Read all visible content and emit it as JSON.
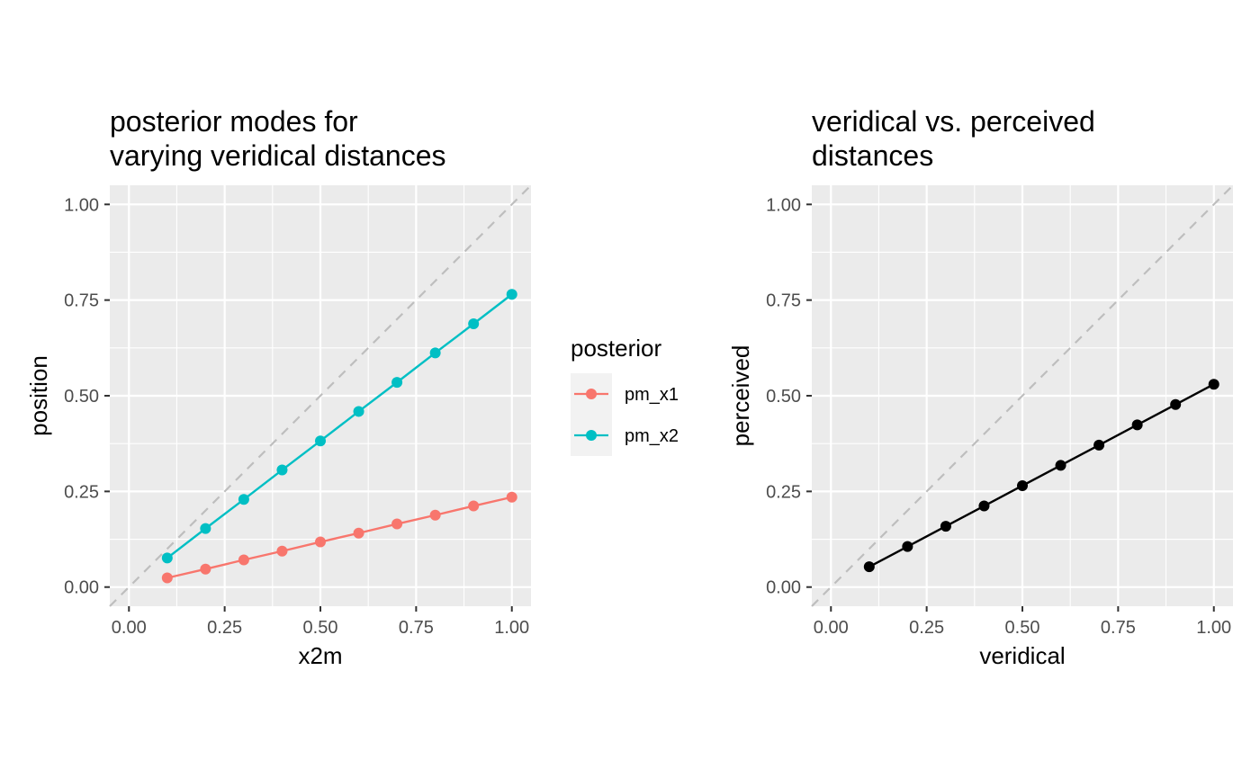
{
  "chart_data": [
    {
      "type": "line",
      "title": "posterior modes for\nvarying veridical distances",
      "xlabel": "x2m",
      "ylabel": "position",
      "xlim": [
        -0.05,
        1.05
      ],
      "ylim": [
        -0.05,
        1.05
      ],
      "xticks": [
        0.0,
        0.25,
        0.5,
        0.75,
        1.0
      ],
      "yticks": [
        0.0,
        0.25,
        0.5,
        0.75,
        1.0
      ],
      "xtick_labels": [
        "0.00",
        "0.25",
        "0.50",
        "0.75",
        "1.00"
      ],
      "ytick_labels": [
        "0.00",
        "0.25",
        "0.50",
        "0.75",
        "1.00"
      ],
      "grid": true,
      "reference_line": {
        "style": "dashed",
        "color": "#bebebe",
        "slope": 1,
        "intercept": 0
      },
      "x": [
        0.1,
        0.2,
        0.3,
        0.4,
        0.5,
        0.6,
        0.7,
        0.8,
        0.9,
        1.0
      ],
      "series": [
        {
          "name": "pm_x1",
          "color": "#F8766D",
          "values": [
            0.024,
            0.047,
            0.071,
            0.094,
            0.118,
            0.141,
            0.165,
            0.188,
            0.212,
            0.235
          ]
        },
        {
          "name": "pm_x2",
          "color": "#00BFC4",
          "values": [
            0.076,
            0.153,
            0.229,
            0.306,
            0.382,
            0.459,
            0.535,
            0.612,
            0.688,
            0.765
          ]
        }
      ],
      "legend": {
        "title": "posterior",
        "position": "right"
      }
    },
    {
      "type": "line",
      "title": "veridical vs. perceived\ndistances",
      "xlabel": "veridical",
      "ylabel": "perceived",
      "xlim": [
        -0.05,
        1.05
      ],
      "ylim": [
        -0.05,
        1.05
      ],
      "xticks": [
        0.0,
        0.25,
        0.5,
        0.75,
        1.0
      ],
      "yticks": [
        0.0,
        0.25,
        0.5,
        0.75,
        1.0
      ],
      "xtick_labels": [
        "0.00",
        "0.25",
        "0.50",
        "0.75",
        "1.00"
      ],
      "ytick_labels": [
        "0.00",
        "0.25",
        "0.50",
        "0.75",
        "1.00"
      ],
      "grid": true,
      "reference_line": {
        "style": "dashed",
        "color": "#bebebe",
        "slope": 1,
        "intercept": 0
      },
      "x": [
        0.1,
        0.2,
        0.3,
        0.4,
        0.5,
        0.6,
        0.7,
        0.8,
        0.9,
        1.0
      ],
      "series": [
        {
          "color": "#000000",
          "values": [
            0.053,
            0.106,
            0.159,
            0.212,
            0.265,
            0.318,
            0.371,
            0.424,
            0.477,
            0.53
          ]
        }
      ]
    }
  ]
}
